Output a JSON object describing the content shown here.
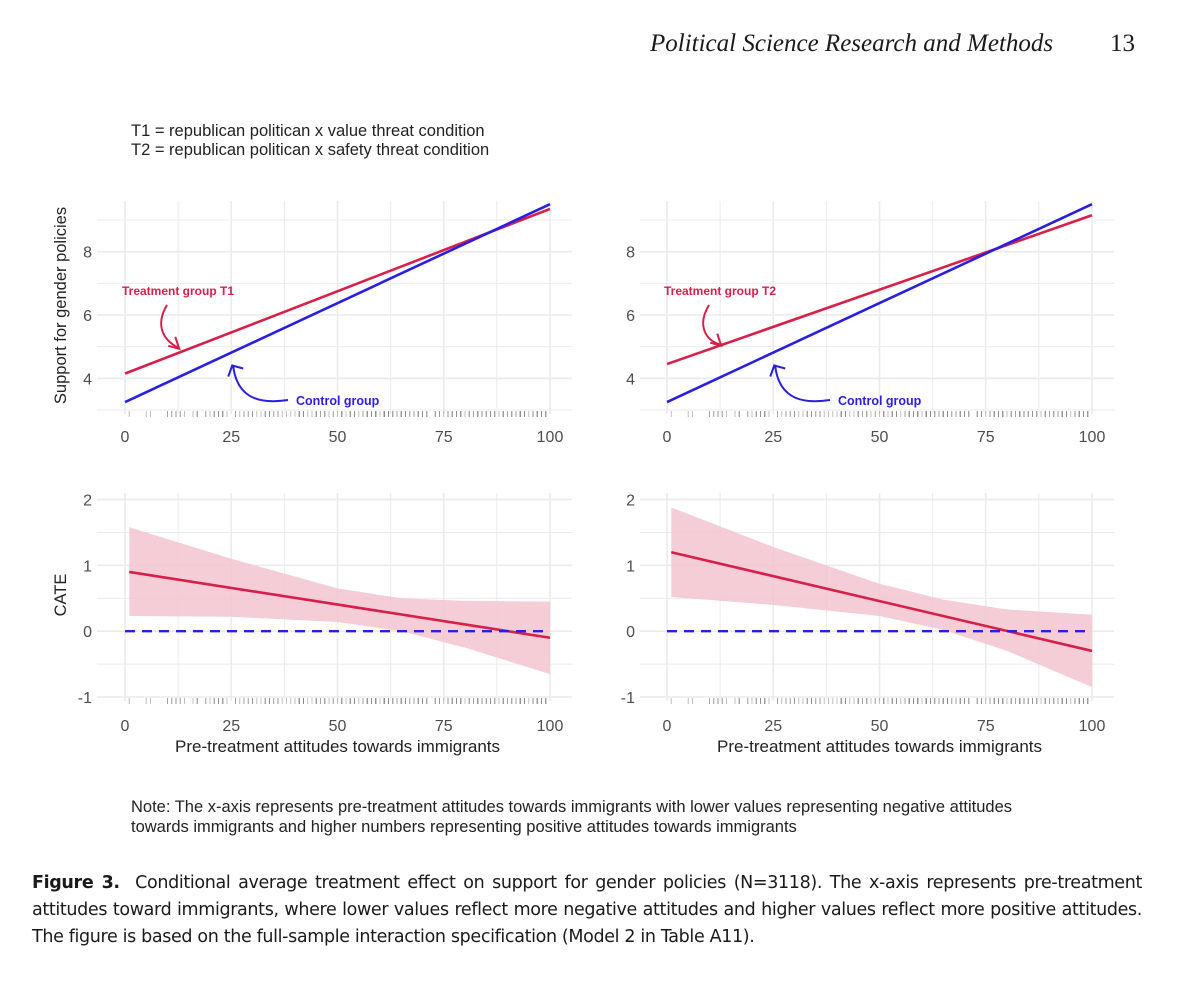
{
  "header": {
    "journal": "Political Science Research and Methods",
    "page_number": "13"
  },
  "legend_note": {
    "line1": "T1 = republican politican x value threat condition",
    "line2": "T2 = republican politican x safety threat condition"
  },
  "colors": {
    "treatment": "#d6204a",
    "control": "#2a1fe0",
    "ci_band": "#f3c4d0",
    "grid": "#ebebeb",
    "rug": "#8a8a8a"
  },
  "chart_data": [
    {
      "id": "top-left",
      "type": "line",
      "title": "",
      "xlabel": "",
      "ylabel": "Support for gender policies",
      "xlim": [
        0,
        100
      ],
      "ylim": [
        3.0,
        9.6
      ],
      "xticks": [
        "0",
        "25",
        "50",
        "75",
        "100"
      ],
      "yticks": [
        "4",
        "6",
        "8"
      ],
      "grid": true,
      "series": [
        {
          "name": "Treatment group T1",
          "role": "treatment",
          "x": [
            0,
            100
          ],
          "y": [
            4.15,
            9.35
          ]
        },
        {
          "name": "Control group",
          "role": "control",
          "x": [
            0,
            100
          ],
          "y": [
            3.25,
            9.5
          ]
        }
      ],
      "annotations": [
        {
          "text": "Treatment group T1",
          "role": "treatment",
          "points_to_x": 13,
          "points_to_y": 4.9
        },
        {
          "text": "Control group",
          "role": "control",
          "points_to_x": 25,
          "points_to_y": 4.5
        }
      ],
      "rug": true
    },
    {
      "id": "top-right",
      "type": "line",
      "title": "",
      "xlabel": "",
      "ylabel": "",
      "xlim": [
        0,
        100
      ],
      "ylim": [
        3.0,
        9.6
      ],
      "xticks": [
        "0",
        "25",
        "50",
        "75",
        "100"
      ],
      "yticks": [
        "4",
        "6",
        "8"
      ],
      "grid": true,
      "series": [
        {
          "name": "Treatment group T2",
          "role": "treatment",
          "x": [
            0,
            100
          ],
          "y": [
            4.45,
            9.15
          ]
        },
        {
          "name": "Control group",
          "role": "control",
          "x": [
            0,
            100
          ],
          "y": [
            3.25,
            9.5
          ]
        }
      ],
      "annotations": [
        {
          "text": "Treatment group T2",
          "role": "treatment",
          "points_to_x": 13,
          "points_to_y": 5.0
        },
        {
          "text": "Control group",
          "role": "control",
          "points_to_x": 25,
          "points_to_y": 4.5
        }
      ],
      "rug": true
    },
    {
      "id": "bottom-left",
      "type": "line",
      "title": "",
      "xlabel": "Pre-treatment attitudes towards immigrants",
      "ylabel": "CATE",
      "xlim": [
        0,
        100
      ],
      "ylim": [
        -1.0,
        2.1
      ],
      "xticks": [
        "0",
        "25",
        "50",
        "75",
        "100"
      ],
      "yticks": [
        "-1",
        "0",
        "1",
        "2"
      ],
      "grid": true,
      "series": [
        {
          "name": "CATE",
          "role": "treatment",
          "x": [
            1,
            100
          ],
          "y": [
            0.9,
            -0.1
          ]
        },
        {
          "name": "Zero reference",
          "role": "control",
          "style": "dashed",
          "x": [
            0,
            100
          ],
          "y": [
            0,
            0
          ]
        }
      ],
      "ci_band": {
        "x": [
          1,
          25,
          50,
          65,
          80,
          100
        ],
        "upper": [
          1.58,
          1.1,
          0.65,
          0.5,
          0.46,
          0.45
        ],
        "lower": [
          0.23,
          0.22,
          0.14,
          0.0,
          -0.25,
          -0.65
        ]
      },
      "rug": true
    },
    {
      "id": "bottom-right",
      "type": "line",
      "title": "",
      "xlabel": "Pre-treatment attitudes towards immigrants",
      "ylabel": "",
      "xlim": [
        0,
        100
      ],
      "ylim": [
        -1.0,
        2.1
      ],
      "xticks": [
        "0",
        "25",
        "50",
        "75",
        "100"
      ],
      "yticks": [
        "-1",
        "0",
        "1",
        "2"
      ],
      "grid": true,
      "series": [
        {
          "name": "CATE",
          "role": "treatment",
          "x": [
            1,
            100
          ],
          "y": [
            1.2,
            -0.3
          ]
        },
        {
          "name": "Zero reference",
          "role": "control",
          "style": "dashed",
          "x": [
            0,
            100
          ],
          "y": [
            0,
            0
          ]
        }
      ],
      "ci_band": {
        "x": [
          1,
          25,
          50,
          65,
          80,
          100
        ],
        "upper": [
          1.88,
          1.28,
          0.72,
          0.48,
          0.33,
          0.25
        ],
        "lower": [
          0.52,
          0.4,
          0.23,
          0.02,
          -0.3,
          -0.85
        ]
      },
      "rug": true
    }
  ],
  "figure_note": {
    "line1": "Note: The x-axis represents pre-treatment attitudes towards immigrants with lower values representing negative attitudes",
    "line2": "towards immigrants and higher numbers representing positive attitudes towards immigrants"
  },
  "caption": {
    "label": "Figure 3.",
    "text": "Conditional average treatment effect on support for gender policies (N=3118). The x-axis represents pre-treatment attitudes toward immigrants, where lower values reflect more negative attitudes and higher values reflect more positive attitudes. The figure is based on the full-sample interaction specification (Model 2 in Table A11)."
  }
}
